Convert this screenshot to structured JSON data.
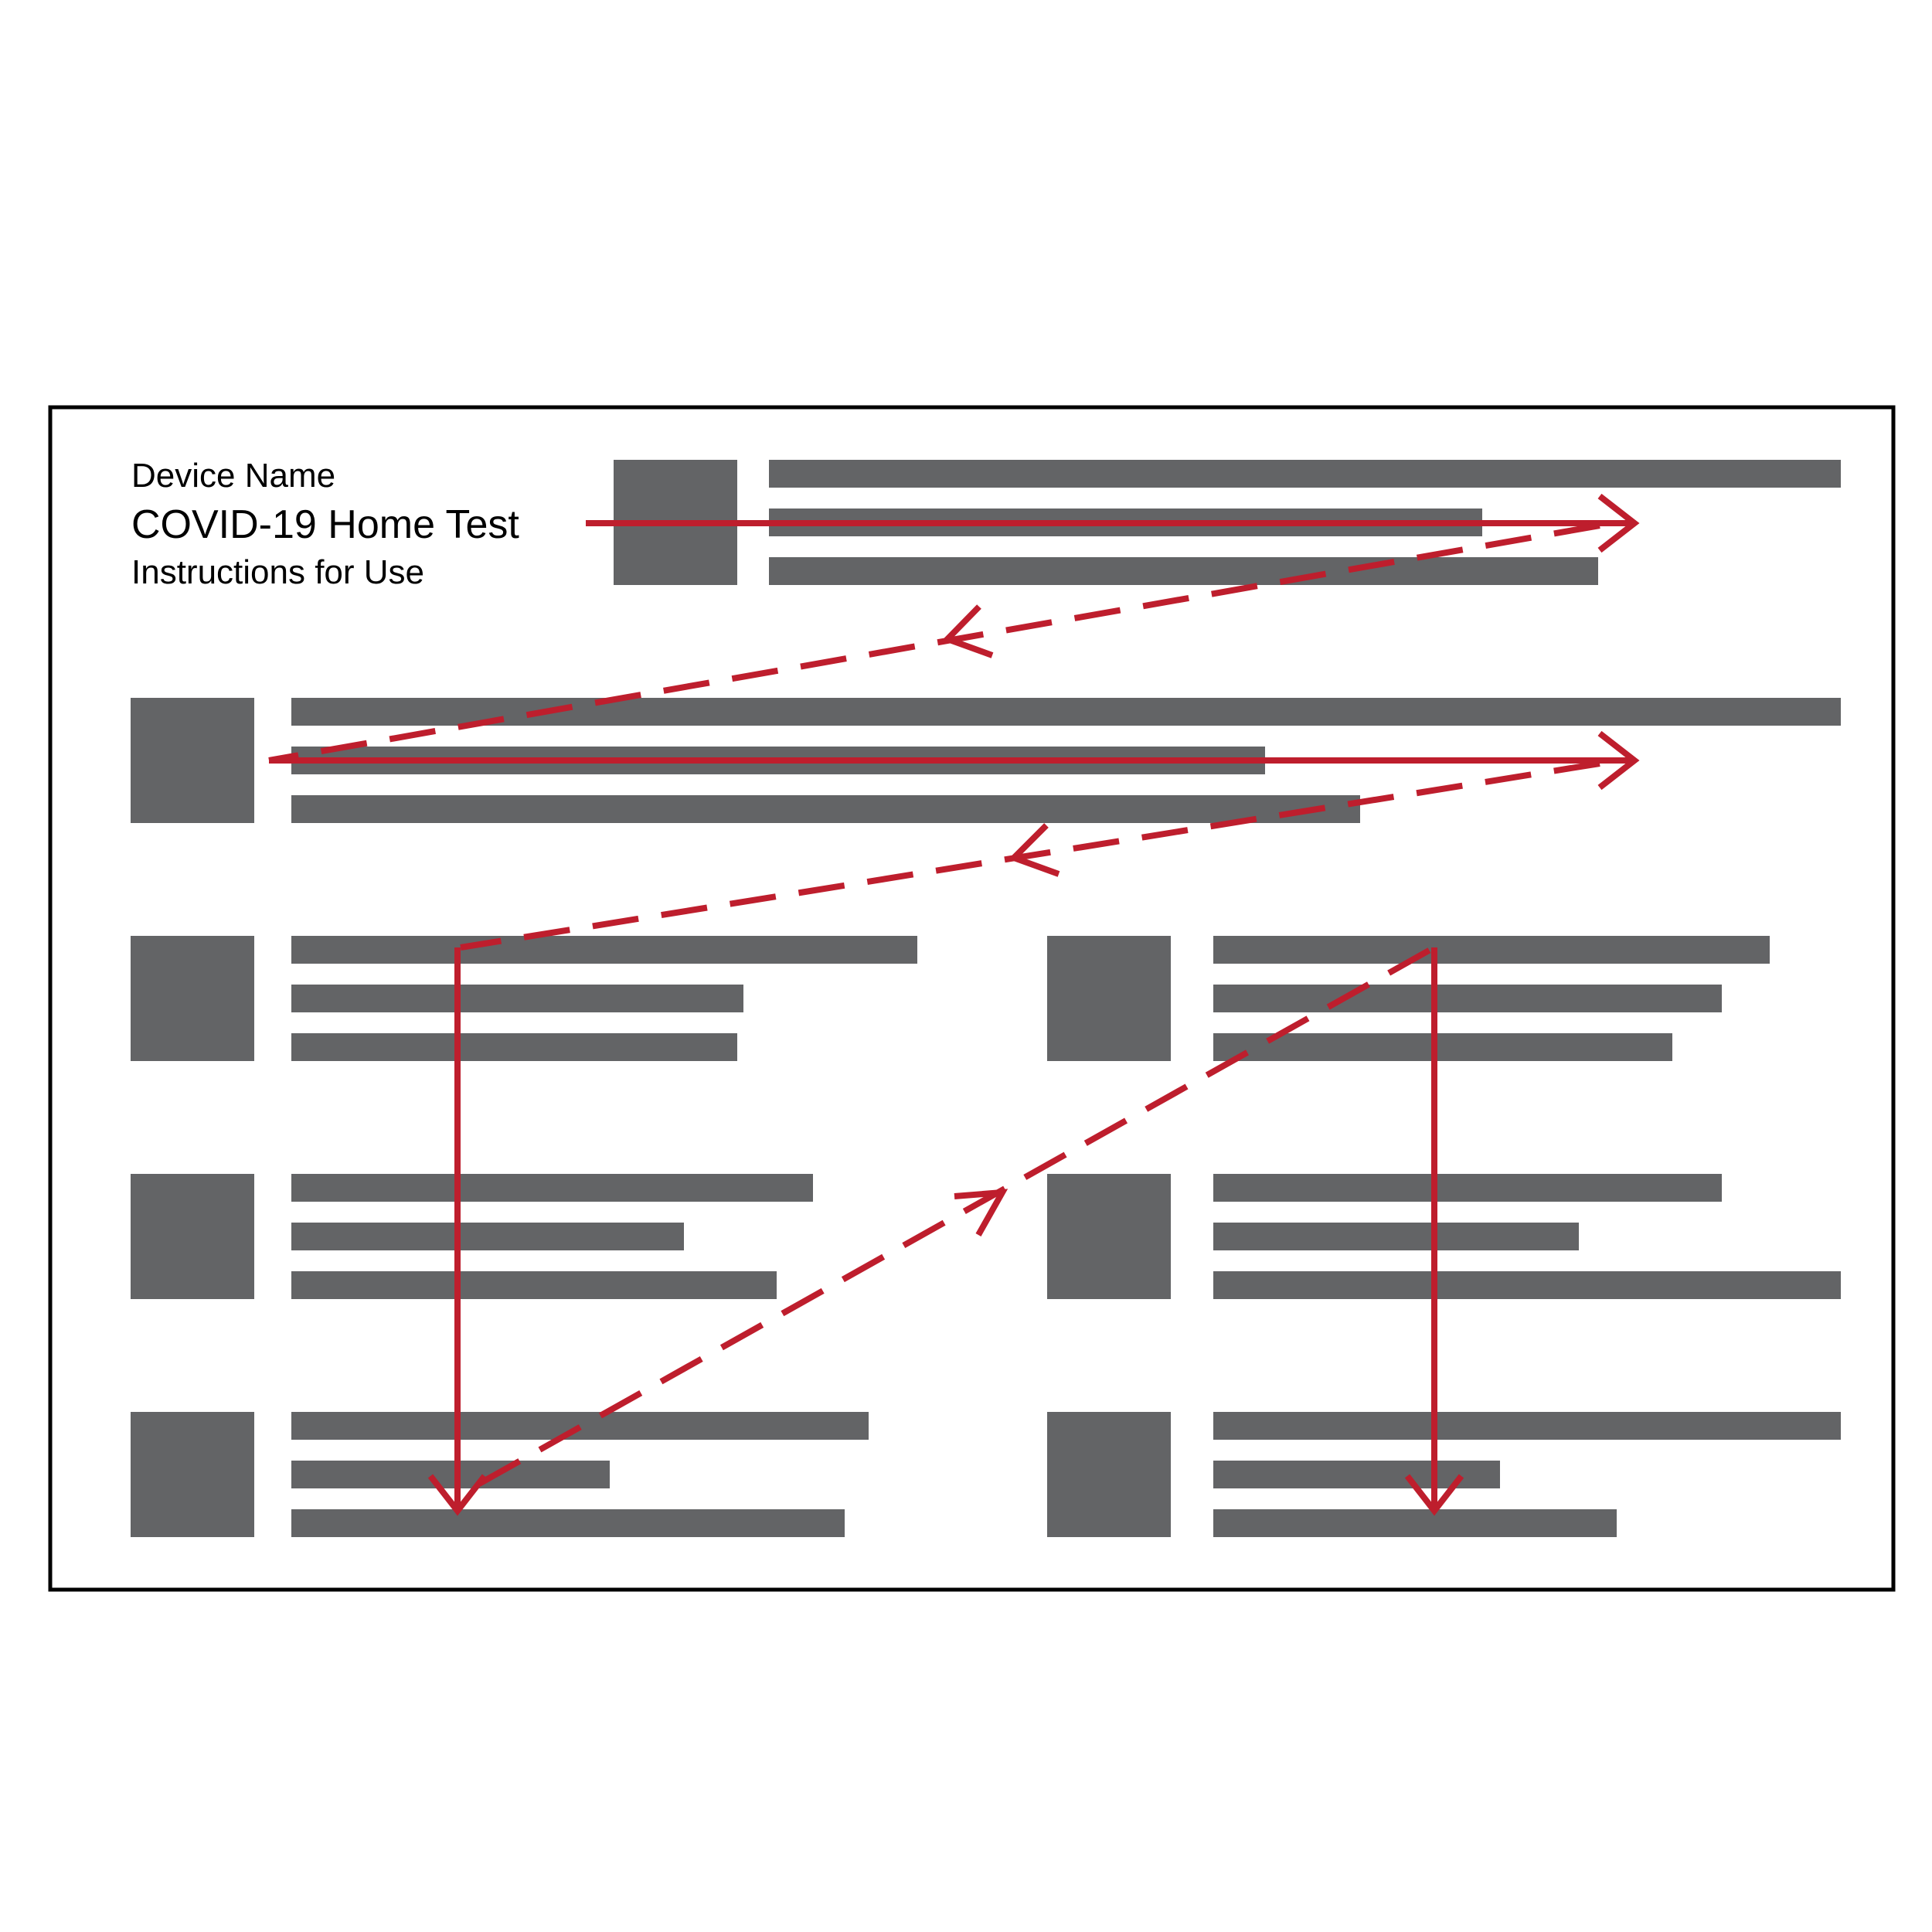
{
  "header": {
    "device_name": "Device Name",
    "product_title": "COVID-19 Home Test",
    "subtitle": "Instructions for Use"
  },
  "colors": {
    "block": "#636466",
    "arrow": "#be1e2d",
    "border": "#000000",
    "background": "#ffffff"
  },
  "reading_path": {
    "arrow_style": [
      "solid",
      "dashed"
    ]
  }
}
